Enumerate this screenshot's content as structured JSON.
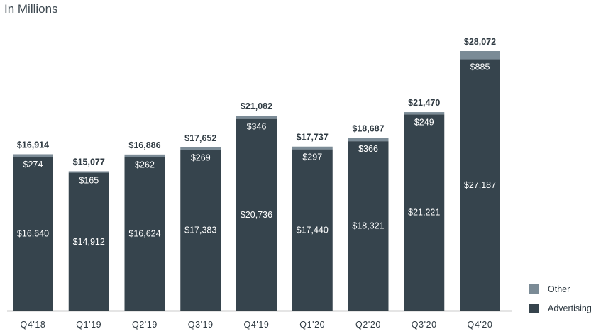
{
  "units_label": "In Millions",
  "colors": {
    "advertising": "#36444d",
    "other": "#7b8b96",
    "axis": "#333333"
  },
  "chart_data": {
    "type": "bar",
    "stacked": true,
    "categories": [
      "Q4'18",
      "Q1'19",
      "Q2'19",
      "Q3'19",
      "Q4'19",
      "Q1'20",
      "Q2'20",
      "Q3'20",
      "Q4'20"
    ],
    "series": [
      {
        "name": "Advertising",
        "values": [
          16640,
          14912,
          16624,
          17383,
          20736,
          17440,
          18321,
          21221,
          27187
        ],
        "labels": [
          "$16,640",
          "$14,912",
          "$16,624",
          "$17,383",
          "$20,736",
          "$17,440",
          "$18,321",
          "$21,221",
          "$27,187"
        ]
      },
      {
        "name": "Other",
        "values": [
          274,
          165,
          262,
          269,
          346,
          297,
          366,
          249,
          885
        ],
        "labels": [
          "$274",
          "$165",
          "$262",
          "$269",
          "$346",
          "$297",
          "$366",
          "$249",
          "$885"
        ]
      }
    ],
    "totals": [
      16914,
      15077,
      16886,
      17652,
      21082,
      17737,
      18687,
      21470,
      28072
    ],
    "total_labels": [
      "$16,914",
      "$15,077",
      "$16,886",
      "$17,652",
      "$21,082",
      "$17,737",
      "$18,687",
      "$21,470",
      "$28,072"
    ],
    "ylim": [
      0,
      28072
    ],
    "grid": false,
    "legend_position": "bottom-right",
    "legend": [
      {
        "key": "other",
        "label": "Other"
      },
      {
        "key": "advertising",
        "label": "Advertising"
      }
    ]
  }
}
